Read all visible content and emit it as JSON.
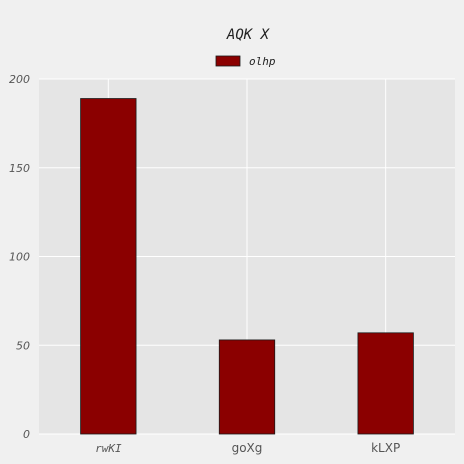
{
  "chart_data": {
    "type": "bar",
    "title": "AQK X",
    "xlabel": "",
    "ylabel": "",
    "categories": [
      "rwKI",
      "goXg",
      "kLXP"
    ],
    "series": [
      {
        "name": "olhp",
        "values": [
          189,
          53,
          57
        ]
      }
    ],
    "ylim": [
      0,
      200
    ],
    "yticks": [
      0,
      50,
      100,
      150,
      200
    ],
    "grid": true,
    "legend_position": "top-center",
    "colors": {
      "bar": "#8b0000",
      "bar_edge": "#1a1a1a",
      "plot_background": "#e5e5e5",
      "figure_background": "#f0f0f0",
      "grid": "#ffffff"
    }
  }
}
